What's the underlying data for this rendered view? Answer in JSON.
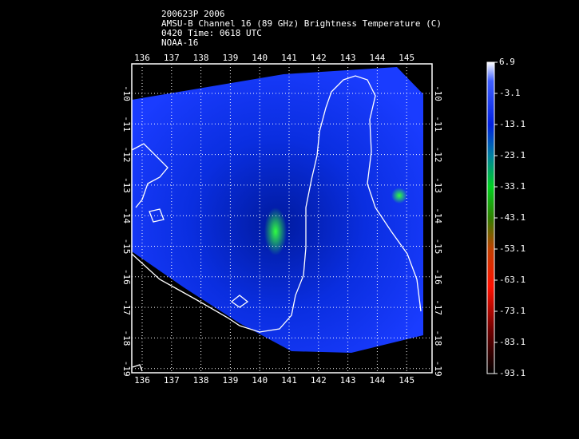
{
  "header": {
    "lines": [
      "200623P 2006",
      "AMSU-B Channel 16 (89 GHz) Brightness Temperature (C)",
      "0420 Time: 0618 UTC",
      "NOAA-16"
    ]
  },
  "map": {
    "lon_ticks": [
      136,
      137,
      138,
      139,
      140,
      141,
      142,
      143,
      144,
      145
    ],
    "lat_ticks": [
      -10,
      -11,
      -12,
      -13,
      -14,
      -15,
      -16,
      -17,
      -18,
      -19
    ]
  },
  "colorbar": {
    "ticks": [
      6.9,
      -3.1,
      -13.1,
      -23.1,
      -33.1,
      -43.1,
      -53.1,
      -63.1,
      -73.1,
      -83.1,
      -93.1
    ]
  }
}
